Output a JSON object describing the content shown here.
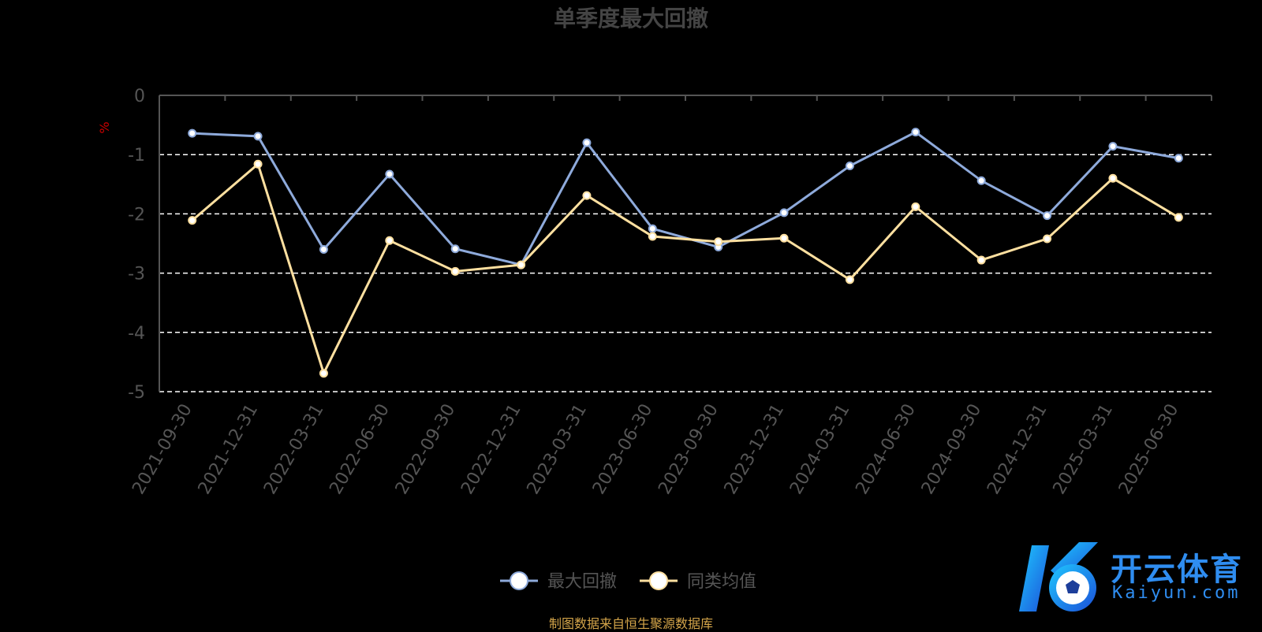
{
  "chart_data": {
    "type": "line",
    "title": "单季度最大回撤",
    "ylabel": "%",
    "ylim": [
      -5,
      0
    ],
    "yticks": [
      0,
      -1,
      -2,
      -3,
      -4,
      -5
    ],
    "grid": true,
    "legend_position": "bottom-center",
    "categories": [
      "2021-09-30",
      "2021-12-31",
      "2022-03-31",
      "2022-06-30",
      "2022-09-30",
      "2022-12-31",
      "2023-03-31",
      "2023-06-30",
      "2023-09-30",
      "2023-12-31",
      "2024-03-31",
      "2024-06-30",
      "2024-09-30",
      "2024-12-31",
      "2025-03-31",
      "2025-06-30"
    ],
    "series": [
      {
        "name": "最大回撤",
        "color": "#8eaadb",
        "values": [
          -0.64,
          -0.69,
          -2.6,
          -1.33,
          -2.59,
          -2.86,
          -0.8,
          -2.25,
          -2.56,
          -1.98,
          -1.19,
          -0.62,
          -1.44,
          -2.03,
          -0.86,
          -1.06
        ]
      },
      {
        "name": "同类均值",
        "color": "#ffe0a0",
        "values": [
          -2.11,
          -1.16,
          -4.69,
          -2.45,
          -2.97,
          -2.86,
          -1.69,
          -2.38,
          -2.47,
          -2.41,
          -3.11,
          -1.88,
          -2.78,
          -2.42,
          -1.4,
          -2.06
        ]
      }
    ]
  },
  "source_note": "制图数据来自恒生聚源数据库",
  "logo": {
    "brand_cn": "开云体育",
    "brand_en": "Kaiyun.com"
  }
}
